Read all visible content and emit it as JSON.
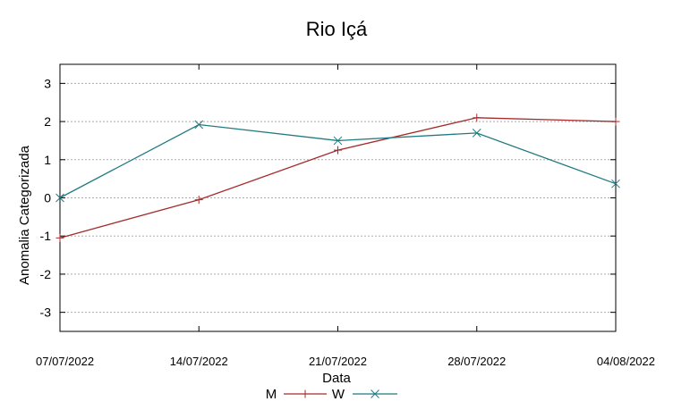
{
  "chart_data": {
    "type": "line",
    "title": "Rio Içá",
    "xlabel": "Data",
    "ylabel": "Anomalia Categorizada",
    "categories": [
      "07/07/2022",
      "14/07/2022",
      "21/07/2022",
      "28/07/2022",
      "04/08/2022"
    ],
    "ylim": [
      -3.5,
      3.5
    ],
    "yticks": [
      "-3",
      "-2",
      "-1",
      "0",
      "1",
      "2",
      "3"
    ],
    "grid": "horizontal dashed",
    "legend_position": "bottom",
    "series": [
      {
        "name": "M",
        "color": "#a52a2a",
        "marker": "plus",
        "values": [
          -1.05,
          -0.05,
          1.25,
          2.1,
          2.0
        ]
      },
      {
        "name": "W",
        "color": "#1f7a80",
        "marker": "cross",
        "values": [
          0.0,
          1.92,
          1.5,
          1.7,
          0.37
        ]
      }
    ]
  }
}
